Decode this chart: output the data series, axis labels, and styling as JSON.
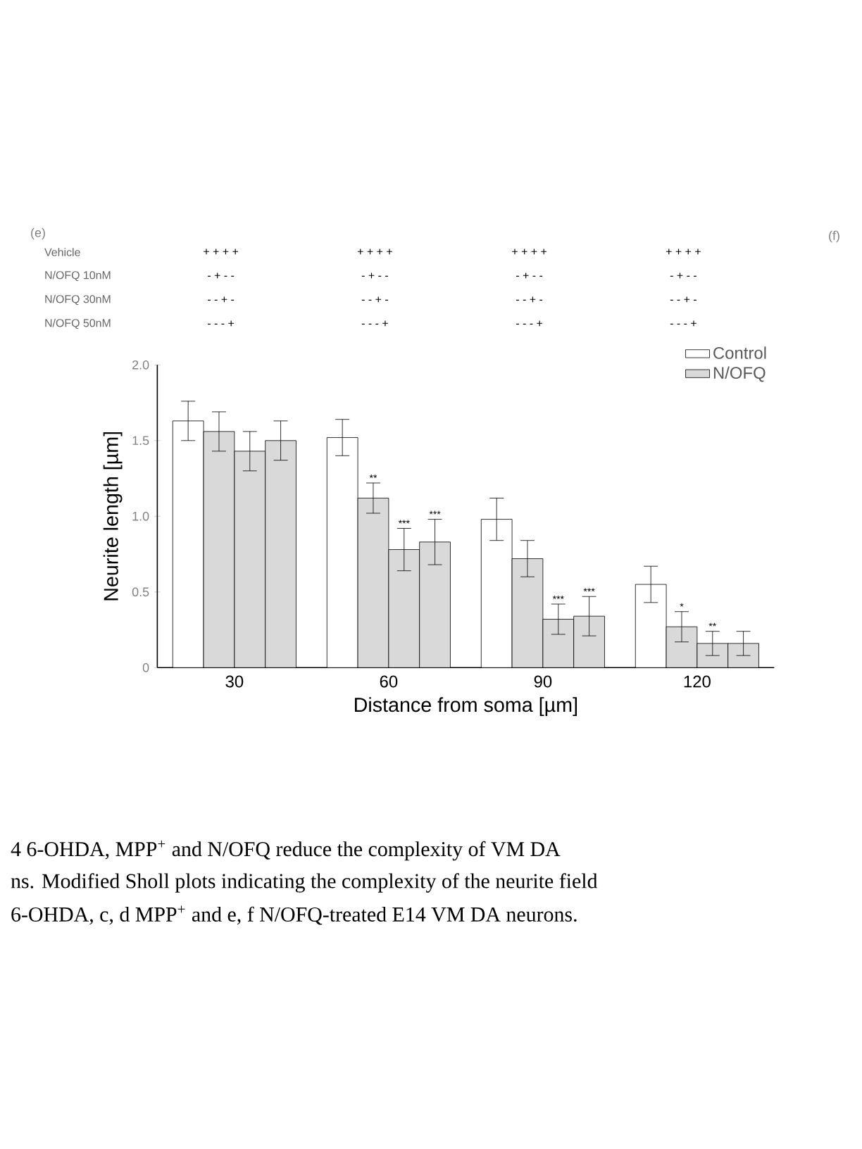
{
  "chart_data": {
    "type": "bar",
    "xlabel": "Distance from soma [µm]",
    "ylabel": "Neurite length [µm]",
    "categories": [
      "30",
      "60",
      "90",
      "120"
    ],
    "series": [
      {
        "name": "Control",
        "color": "#ffffff",
        "values": [
          1.63,
          1.52,
          0.98,
          0.55
        ],
        "errors": [
          0.13,
          0.12,
          0.14,
          0.12
        ]
      },
      {
        "name": "N/OFQ",
        "color": "#d9d9d9",
        "values": [
          1.56,
          1.12,
          0.72,
          0.27
        ],
        "errors": [
          0.13,
          0.1,
          0.12,
          0.1
        ],
        "value_labels": [
          null,
          "**",
          null,
          "*"
        ]
      },
      {
        "color": "#d9d9d9",
        "values": [
          1.43,
          0.78,
          0.32,
          0.16
        ],
        "errors": [
          0.13,
          0.14,
          0.1,
          0.08
        ],
        "value_labels": [
          null,
          "***",
          "***",
          "**"
        ]
      },
      {
        "color": "#d9d9d9",
        "values": [
          1.5,
          0.83,
          0.34,
          0.16
        ],
        "errors": [
          0.13,
          0.15,
          0.13,
          0.08
        ],
        "value_labels": [
          null,
          "***",
          "***",
          null
        ]
      }
    ],
    "ylim": [
      0,
      2.0
    ],
    "yticks": [
      0,
      {
        "value": 0.5,
        "label": "0.5"
      },
      {
        "value": 1,
        "label": "1.0"
      },
      {
        "value": 1.5,
        "label": "1.5"
      },
      {
        "value": 2,
        "label": "2.0"
      }
    ],
    "legend": "top right",
    "annotations": [
      "(e)",
      "(f)",
      "Vehicle",
      "+ + + +",
      "+ + + +",
      "+ + + +",
      "+ + + +",
      "N/OFQ 10nM",
      "- + - -",
      "- + - -",
      "- + - -",
      "- + - -",
      "N/OFQ 30nM",
      "- - + -",
      "- - + -",
      "- - + -",
      "- - + -",
      "N/OFQ 50nM",
      "- - - +",
      "- - - +",
      "- - - +",
      "- - - +",
      "4 6-OHDA, MPP$^{+}$ and N/OFQ reduce the complexity of VM DA",
      "ns. Modified Sholl plots indicating the complexity of the neurite field",
      "6-OHDA, c, d MPP$^{+}$ and e, f N/OFQ-treated E14 VM DA neurons."
    ]
  }
}
